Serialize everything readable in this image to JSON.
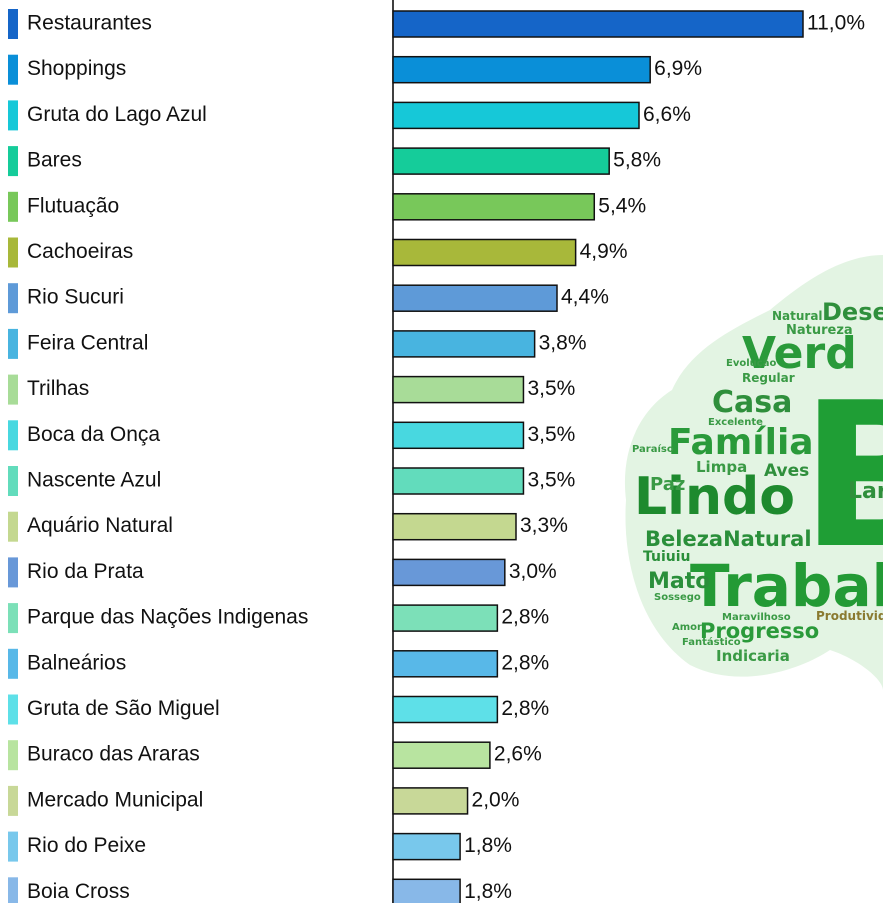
{
  "chart_data": {
    "type": "bar",
    "orientation": "horizontal",
    "categories": [
      "Restaurantes",
      "Shoppings",
      "Gruta do Lago Azul",
      "Bares",
      "Flutuação",
      "Cachoeiras",
      "Rio Sucuri",
      "Feira Central",
      "Trilhas",
      "Boca da Onça",
      "Nascente Azul",
      "Aquário Natural",
      "Rio da Prata",
      "Parque das Nações Indigenas",
      "Balneários",
      "Gruta de São Miguel",
      "Buraco das Araras",
      "Mercado Municipal",
      "Rio do Peixe",
      "Boia Cross"
    ],
    "values": [
      11.0,
      6.9,
      6.6,
      5.8,
      5.4,
      4.9,
      4.4,
      3.8,
      3.5,
      3.5,
      3.5,
      3.3,
      3.0,
      2.8,
      2.8,
      2.8,
      2.6,
      2.0,
      1.8,
      1.8
    ],
    "value_labels": [
      "11,0%",
      "6,9%",
      "6,6%",
      "5,8%",
      "5,4%",
      "4,9%",
      "4,4%",
      "3,8%",
      "3,5%",
      "3,5%",
      "3,5%",
      "3,3%",
      "3,0%",
      "2,8%",
      "2,8%",
      "2,8%",
      "2,6%",
      "2,0%",
      "1,8%",
      "1,8%"
    ],
    "colors": [
      "#1565c8",
      "#0a8fd8",
      "#16c8d8",
      "#15cc9a",
      "#78c85a",
      "#a8b83a",
      "#5e9ad8",
      "#48b4e0",
      "#a8dc98",
      "#48d8e0",
      "#62dcbc",
      "#c4d890",
      "#6898d8",
      "#7ce0b8",
      "#58b8e8",
      "#5ee0e8",
      "#b8e4a0",
      "#c8d898",
      "#78c8ec",
      "#88b8e8"
    ],
    "xlim": [
      0,
      11
    ]
  },
  "word_cloud": {
    "words": [
      "B",
      "Verd",
      "Casa",
      "Família",
      "Lindo",
      "Trabalh",
      "BelezaNatural",
      "Progresso",
      "Indicaria",
      "Mato",
      "Paz",
      "Limpa",
      "Aves",
      "Regular",
      "Evolução",
      "Natureza",
      "Natural",
      "Dese",
      "Excelente",
      "Paraíso",
      "Tuiuiu",
      "Sossego",
      "Amor",
      "Maravilhoso",
      "Fantástico",
      "Produtividade",
      "Lar"
    ]
  }
}
